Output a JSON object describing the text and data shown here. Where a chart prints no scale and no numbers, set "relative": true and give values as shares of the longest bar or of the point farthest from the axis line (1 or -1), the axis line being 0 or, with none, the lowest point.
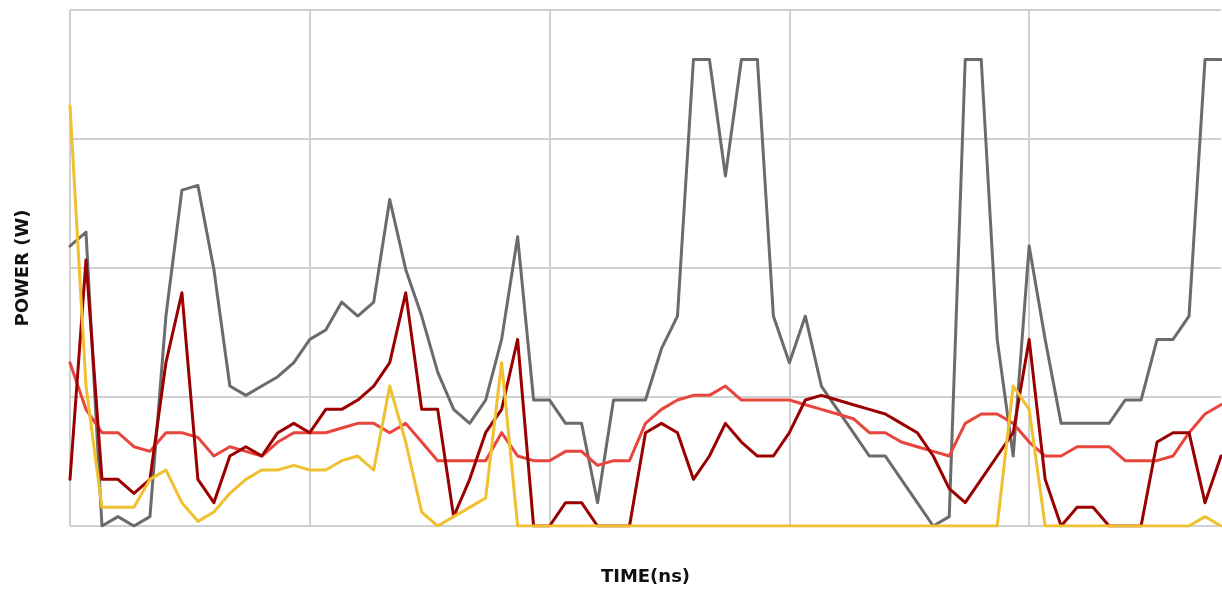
{
  "chart_data": {
    "type": "line",
    "xlabel": "TIME(ns)",
    "ylabel": "POWER (W)",
    "relative": true,
    "grid": true,
    "marker": "none",
    "line_style": "solid",
    "categories": [
      null,
      null,
      null,
      null,
      null,
      null,
      null,
      null,
      null,
      null,
      null,
      null,
      null,
      null,
      null,
      null,
      null,
      null,
      null,
      null,
      null,
      null,
      null,
      null,
      null,
      null,
      null,
      null,
      null,
      null,
      null,
      null,
      null,
      null,
      null,
      null,
      null,
      null,
      null,
      null,
      null,
      null,
      null,
      null,
      null,
      null,
      null,
      null,
      null,
      null,
      null,
      null,
      null,
      null,
      null,
      null,
      null,
      null,
      null,
      null,
      null,
      null,
      null,
      null,
      null,
      null,
      null,
      null,
      null,
      null,
      null,
      null,
      null
    ],
    "series": [
      {
        "color": "#6b6b6b",
        "values": [
          0.6,
          0.63,
          0.0,
          0.02,
          0.0,
          0.02,
          0.45,
          0.72,
          0.73,
          0.55,
          0.3,
          0.28,
          0.3,
          0.32,
          0.35,
          0.4,
          0.42,
          0.48,
          0.45,
          0.48,
          0.7,
          0.55,
          0.45,
          0.33,
          0.25,
          0.22,
          0.27,
          0.4,
          0.62,
          0.27,
          0.27,
          0.22,
          0.22,
          0.05,
          0.27,
          0.27,
          0.27,
          0.38,
          0.45,
          1.0,
          1.0,
          0.75,
          1.0,
          1.0,
          0.45,
          0.35,
          0.45,
          0.3,
          0.25,
          0.2,
          0.15,
          0.15,
          0.1,
          0.05,
          0.0,
          0.02,
          1.0,
          1.0,
          0.4,
          0.15,
          0.6,
          0.4,
          0.22,
          0.22,
          0.22,
          0.22,
          0.27,
          0.27,
          0.4,
          0.4,
          0.45,
          1.0,
          1.0
        ]
      },
      {
        "color": "#e8453c",
        "values": [
          0.35,
          0.25,
          0.2,
          0.2,
          0.17,
          0.16,
          0.2,
          0.2,
          0.19,
          0.15,
          0.17,
          0.16,
          0.15,
          0.18,
          0.2,
          0.2,
          0.2,
          0.21,
          0.22,
          0.22,
          0.2,
          0.22,
          0.18,
          0.14,
          0.14,
          0.14,
          0.14,
          0.2,
          0.15,
          0.14,
          0.14,
          0.16,
          0.16,
          0.13,
          0.14,
          0.14,
          0.22,
          0.25,
          0.27,
          0.28,
          0.28,
          0.3,
          0.27,
          0.27,
          0.27,
          0.27,
          0.26,
          0.25,
          0.24,
          0.23,
          0.2,
          0.2,
          0.18,
          0.17,
          0.16,
          0.15,
          0.22,
          0.24,
          0.24,
          0.22,
          0.18,
          0.15,
          0.15,
          0.17,
          0.17,
          0.17,
          0.14,
          0.14,
          0.14,
          0.15,
          0.2,
          0.24,
          0.26
        ]
      },
      {
        "color": "#9b0000",
        "values": [
          0.1,
          0.57,
          0.1,
          0.1,
          0.07,
          0.1,
          0.35,
          0.5,
          0.1,
          0.05,
          0.15,
          0.17,
          0.15,
          0.2,
          0.22,
          0.2,
          0.25,
          0.25,
          0.27,
          0.3,
          0.35,
          0.5,
          0.25,
          0.25,
          0.02,
          0.1,
          0.2,
          0.25,
          0.4,
          0.0,
          0.0,
          0.05,
          0.05,
          0.0,
          0.0,
          0.0,
          0.2,
          0.22,
          0.2,
          0.1,
          0.15,
          0.22,
          0.18,
          0.15,
          0.15,
          0.2,
          0.27,
          0.28,
          0.27,
          0.26,
          0.25,
          0.24,
          0.22,
          0.2,
          0.15,
          0.08,
          0.05,
          0.1,
          0.15,
          0.2,
          0.4,
          0.1,
          0.0,
          0.04,
          0.04,
          0.0,
          0.0,
          0.0,
          0.18,
          0.2,
          0.2,
          0.05,
          0.15
        ]
      },
      {
        "color": "#f0c030",
        "values": [
          0.9,
          0.3,
          0.04,
          0.04,
          0.04,
          0.1,
          0.12,
          0.05,
          0.01,
          0.03,
          0.07,
          0.1,
          0.12,
          0.12,
          0.13,
          0.12,
          0.12,
          0.14,
          0.15,
          0.12,
          0.3,
          0.18,
          0.03,
          0.0,
          0.02,
          0.04,
          0.06,
          0.35,
          0.0,
          0.0,
          0.0,
          0.0,
          0.0,
          0.0,
          0.0,
          0.0,
          0.0,
          0.0,
          0.0,
          0.0,
          0.0,
          0.0,
          0.0,
          0.0,
          0.0,
          0.0,
          0.0,
          0.0,
          0.0,
          0.0,
          0.0,
          0.0,
          0.0,
          0.0,
          0.0,
          0.0,
          0.0,
          0.0,
          0.0,
          0.3,
          0.25,
          0.0,
          0.0,
          0.0,
          0.0,
          0.0,
          0.0,
          0.0,
          0.0,
          0.0,
          0.0,
          0.02,
          0.0
        ]
      }
    ]
  }
}
